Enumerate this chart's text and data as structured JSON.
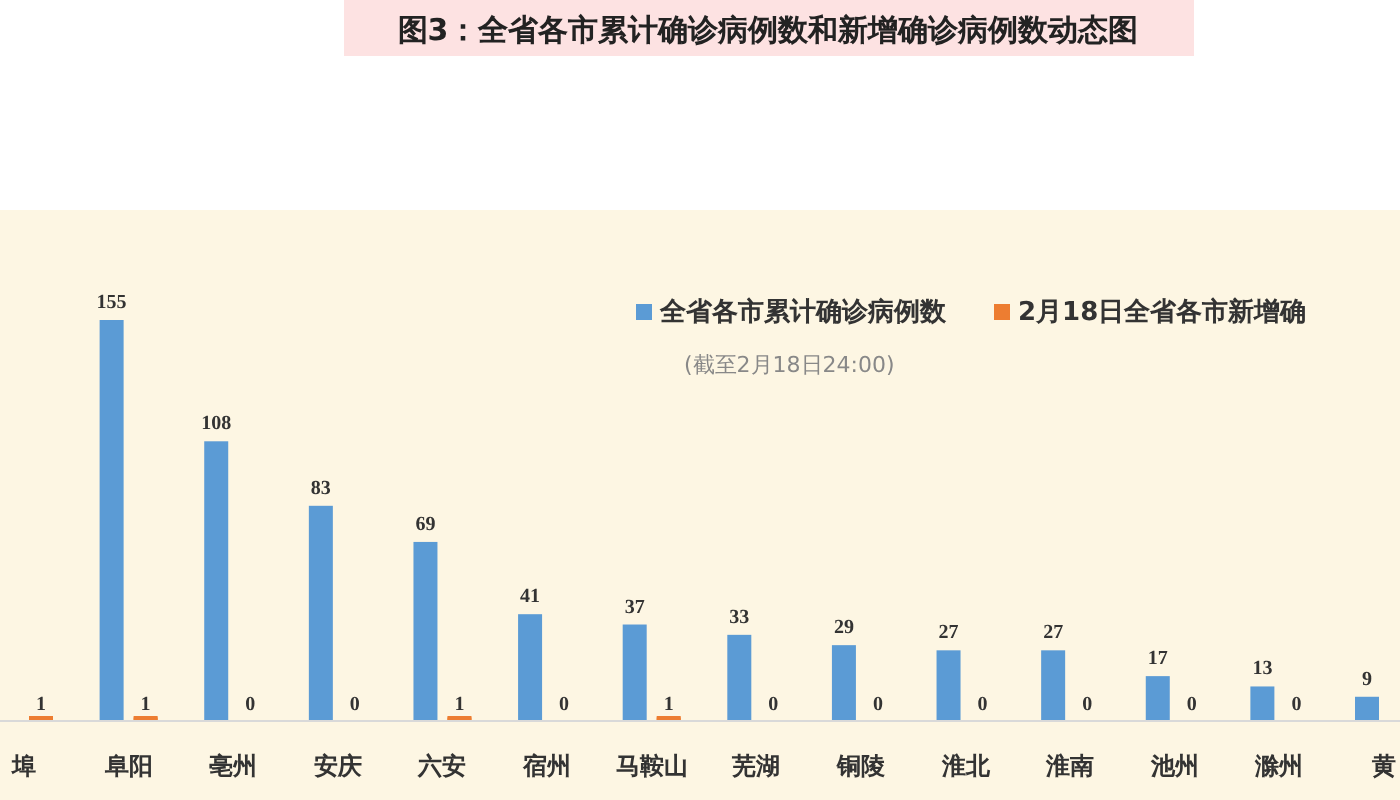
{
  "chart_data": {
    "type": "bar",
    "title": "图3：全省各市累计确诊病例数和新增确诊病例数动态图",
    "subtitle": "(截至2月18日24:00)",
    "categories": [
      "埠",
      "阜阳",
      "亳州",
      "安庆",
      "六安",
      "宿州",
      "马鞍山",
      "芜湖",
      "铜陵",
      "淮北",
      "淮南",
      "池州",
      "滁州",
      "黄"
    ],
    "series": [
      {
        "name": "全省各市累计确诊病例数",
        "color": "#5b9bd5",
        "values": [
          null,
          155,
          108,
          83,
          69,
          41,
          37,
          33,
          29,
          27,
          27,
          17,
          13,
          9
        ]
      },
      {
        "name": "2月18日全省各市新增确",
        "color": "#ed7d31",
        "values": [
          1,
          1,
          0,
          0,
          1,
          0,
          1,
          0,
          0,
          0,
          0,
          0,
          0,
          null
        ]
      }
    ],
    "data_labels": true,
    "legend": "top right",
    "grid": false
  }
}
